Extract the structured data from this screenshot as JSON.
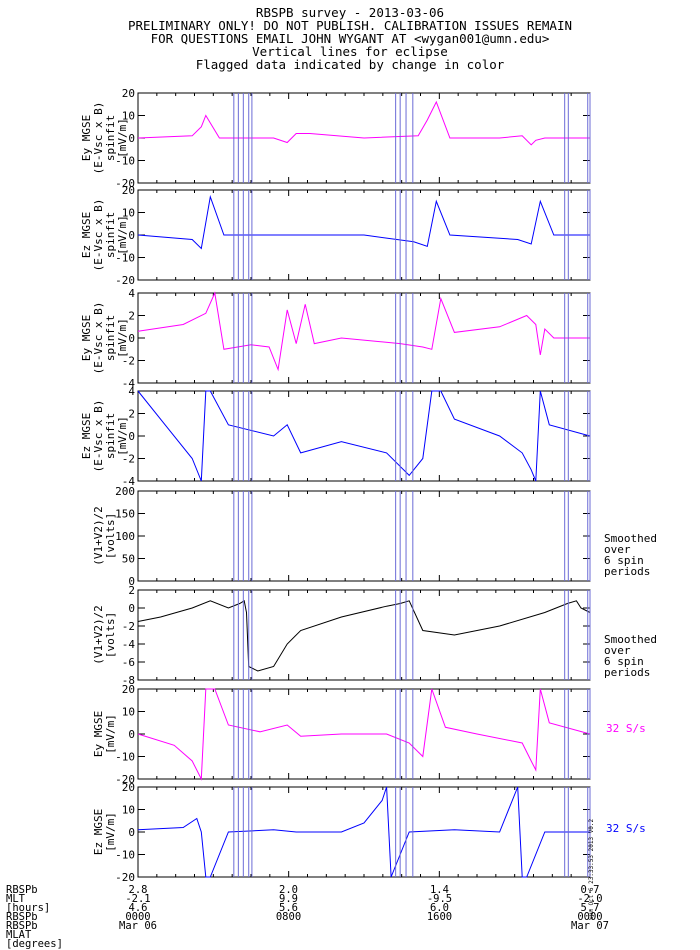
{
  "header": {
    "line1": "RBSPB survey - 2013-03-06",
    "line2": "PRELIMINARY ONLY! DO NOT PUBLISH. CALIBRATION ISSUES REMAIN",
    "line3": "FOR QUESTIONS EMAIL JOHN WYGANT AT <wygan001@umn.edu>",
    "line4": "Vertical lines for eclipse",
    "line5": "Flagged data indicated by change in color"
  },
  "colors": {
    "magenta": "#ff00ff",
    "blue": "#0000ff",
    "black": "#000000",
    "eclipse": "#6b6bd6"
  },
  "chart_data": [
    {
      "type": "line",
      "id": "panel1",
      "ylabel": [
        "Ey MGSE",
        "(E-Vsc x B)",
        "spinfit",
        "[mV/m]"
      ],
      "ylim": [
        -20,
        20
      ],
      "yticks": [
        -20,
        -10,
        0,
        10,
        20
      ],
      "color": "#ff00ff",
      "series": [
        {
          "x": [
            0,
            0.12,
            0.14,
            0.15,
            0.18,
            0.3,
            0.33,
            0.35,
            0.38,
            0.5,
            0.62,
            0.64,
            0.66,
            0.69,
            0.8,
            0.85,
            0.87,
            0.88,
            0.9,
            1.0
          ],
          "y": [
            0,
            1,
            5,
            10,
            0,
            0,
            -2,
            2,
            2,
            0,
            1,
            8,
            16,
            0,
            0,
            1,
            -3,
            -1,
            0,
            0
          ]
        }
      ]
    },
    {
      "type": "line",
      "id": "panel2",
      "ylabel": [
        "Ez MGSE",
        "(E-Vsc x B)",
        "spinfit",
        "[mV/m]"
      ],
      "ylim": [
        -20,
        20
      ],
      "yticks": [
        -20,
        -10,
        0,
        10,
        20
      ],
      "color": "#0000ff",
      "series": [
        {
          "x": [
            0,
            0.12,
            0.14,
            0.16,
            0.19,
            0.3,
            0.5,
            0.61,
            0.64,
            0.66,
            0.69,
            0.84,
            0.87,
            0.89,
            0.92,
            1.0
          ],
          "y": [
            0,
            -2,
            -6,
            17,
            0,
            0,
            0,
            -3,
            -5,
            15,
            0,
            -2,
            -4,
            15,
            0,
            0
          ]
        }
      ]
    },
    {
      "type": "line",
      "id": "panel3",
      "ylabel": [
        "Ey MGSE",
        "(E-Vsc x B)",
        "spinfit",
        "[mV/m]"
      ],
      "ylim": [
        -4,
        4
      ],
      "yticks": [
        -4,
        -2,
        0,
        2,
        4
      ],
      "color": "#ff00ff",
      "series": [
        {
          "x": [
            0,
            0.1,
            0.15,
            0.17,
            0.19,
            0.25,
            0.29,
            0.31,
            0.33,
            0.35,
            0.37,
            0.39,
            0.45,
            0.58,
            0.63,
            0.65,
            0.67,
            0.7,
            0.8,
            0.86,
            0.88,
            0.89,
            0.9,
            0.92,
            1.0
          ],
          "y": [
            0.6,
            1.2,
            2.2,
            4,
            -1,
            -0.6,
            -0.8,
            -2.8,
            2.5,
            -0.5,
            3,
            -0.5,
            0,
            -0.5,
            -0.8,
            -1,
            3.5,
            0.5,
            1,
            2,
            1.2,
            -1.5,
            0.8,
            0,
            0
          ]
        }
      ]
    },
    {
      "type": "line",
      "id": "panel4",
      "ylabel": [
        "Ez MGSE",
        "(E-Vsc x B)",
        "spinfit",
        "[mV/m]"
      ],
      "ylim": [
        -4,
        4
      ],
      "yticks": [
        -4,
        -2,
        0,
        2,
        4
      ],
      "color": "#0000ff",
      "series": [
        {
          "x": [
            0,
            0.06,
            0.12,
            0.14,
            0.15,
            0.16,
            0.2,
            0.3,
            0.33,
            0.36,
            0.45,
            0.55,
            0.6,
            0.63,
            0.65,
            0.67,
            0.7,
            0.8,
            0.85,
            0.87,
            0.88,
            0.89,
            0.91,
            1.0
          ],
          "y": [
            4,
            1,
            -2,
            -4,
            4,
            4,
            1,
            0,
            1,
            -1.5,
            -0.5,
            -1.5,
            -3.5,
            -2,
            4,
            4,
            1.5,
            0,
            -1.5,
            -3,
            -4,
            4,
            1,
            0
          ]
        }
      ]
    },
    {
      "type": "line",
      "id": "panel5",
      "ylabel": [
        "(V1+V2)/2",
        "[volts]"
      ],
      "ylim": [
        0,
        200
      ],
      "yticks": [
        0,
        50,
        100,
        150,
        200
      ],
      "color": "#000000",
      "note": "Smoothed\nover\n6 spin\nperiods",
      "series": [
        {
          "x": [
            0,
            0.2,
            0.3,
            0.5,
            0.6,
            0.8,
            1.0
          ],
          "y": [
            0,
            0,
            -1,
            0,
            -1,
            0,
            0
          ]
        }
      ]
    },
    {
      "type": "line",
      "id": "panel6",
      "ylabel": [
        "(V1+V2)/2",
        "[volts]"
      ],
      "ylim": [
        -8,
        2
      ],
      "yticks": [
        -8,
        -6,
        -4,
        -2,
        0,
        2
      ],
      "color": "#000000",
      "note": "Smoothed\nover\n6 spin\nperiods",
      "series": [
        {
          "x": [
            0,
            0.05,
            0.12,
            0.16,
            0.2,
            0.225,
            0.235,
            0.24,
            0.245,
            0.265,
            0.3,
            0.33,
            0.36,
            0.45,
            0.55,
            0.58,
            0.6,
            0.61,
            0.63,
            0.7,
            0.8,
            0.9,
            0.95,
            0.97,
            0.98,
            1.0
          ],
          "y": [
            -1.5,
            -1,
            0,
            0.8,
            0,
            0.5,
            0.8,
            -0.5,
            -6.5,
            -7,
            -6.5,
            -4,
            -2.5,
            -1,
            0.2,
            0.5,
            0.8,
            -0.3,
            -2.5,
            -3,
            -2,
            -0.5,
            0.5,
            0.8,
            0,
            -0.5
          ]
        }
      ]
    },
    {
      "type": "line",
      "id": "panel7",
      "ylabel": [
        "Ey MGSE",
        "[mV/m]"
      ],
      "ylim": [
        -20,
        20
      ],
      "yticks": [
        -20,
        -10,
        0,
        10,
        20
      ],
      "color": "#ff00ff",
      "rate": "32 S/s",
      "series": [
        {
          "x": [
            0,
            0.08,
            0.12,
            0.14,
            0.15,
            0.17,
            0.2,
            0.27,
            0.33,
            0.36,
            0.45,
            0.55,
            0.6,
            0.63,
            0.65,
            0.68,
            0.75,
            0.85,
            0.87,
            0.88,
            0.89,
            0.91,
            1.0
          ],
          "y": [
            0,
            -5,
            -12,
            -20,
            20,
            20,
            4,
            1,
            4,
            -1,
            0,
            0,
            -4,
            -10,
            20,
            3,
            0,
            -4,
            -12,
            -16,
            20,
            5,
            0
          ]
        }
      ]
    },
    {
      "type": "line",
      "id": "panel8",
      "ylabel": [
        "Ez MGSE",
        "[mV/m]"
      ],
      "ylim": [
        -20,
        20
      ],
      "yticks": [
        -20,
        -10,
        0,
        10,
        20
      ],
      "color": "#0000ff",
      "rate": "32 S/s",
      "series": [
        {
          "x": [
            0,
            0.1,
            0.13,
            0.14,
            0.15,
            0.16,
            0.2,
            0.3,
            0.35,
            0.45,
            0.5,
            0.54,
            0.55,
            0.56,
            0.6,
            0.7,
            0.8,
            0.84,
            0.85,
            0.86,
            0.9,
            1.0
          ],
          "y": [
            1,
            2,
            6,
            0,
            -20,
            -20,
            0,
            1,
            0,
            0,
            4,
            14,
            20,
            -20,
            0,
            1,
            0,
            20,
            -20,
            -20,
            0,
            0
          ]
        }
      ]
    }
  ],
  "eclipse_x": [
    0.212,
    0.222,
    0.233,
    0.245,
    0.252,
    0.57,
    0.58,
    0.593,
    0.608,
    0.944,
    0.952,
    0.995,
    1.0
  ],
  "footer": {
    "row_labels": [
      "RBSPb",
      "MLT",
      "[hours]",
      "RBSPb",
      "RBSPb",
      "MLAT",
      "[degrees]"
    ],
    "ticks": [
      {
        "x": 0.0,
        "values": [
          "2.8",
          "-2.1",
          "4.6",
          "0000",
          "Mar 06"
        ]
      },
      {
        "x": 0.333,
        "values": [
          "2.0",
          "9.9",
          "5.6",
          "0800",
          ""
        ]
      },
      {
        "x": 0.667,
        "values": [
          "1.4",
          "-9.5",
          "6.0",
          "1600",
          ""
        ]
      },
      {
        "x": 1.0,
        "values": [
          "0.7",
          "-2.0",
          "5.7",
          "0000",
          "Mar 07"
        ]
      }
    ]
  },
  "stamp": "Sun Oct  6 23:33:53 2013 V0.2"
}
